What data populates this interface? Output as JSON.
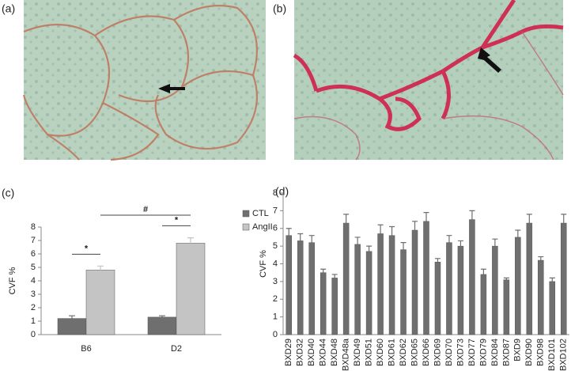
{
  "images": [
    {
      "label": "(a)"
    },
    {
      "label": "(b)"
    }
  ],
  "chart_data": [
    {
      "type": "bar",
      "panel_label": "(c)",
      "y_label": "CVF %",
      "categories": [
        "B6",
        "D2"
      ],
      "series": [
        {
          "name": "CTL",
          "color": "#6f6f6f",
          "values": [
            1.2,
            1.3
          ],
          "errors": [
            0.2,
            0.1
          ]
        },
        {
          "name": "AngII",
          "color": "#c4c4c4",
          "values": [
            4.8,
            6.8
          ],
          "errors": [
            0.3,
            0.4
          ]
        }
      ],
      "ylim": [
        0,
        8
      ],
      "yticks": [
        0,
        1,
        2,
        3,
        4,
        5,
        6,
        7,
        8
      ],
      "annotations": [
        {
          "text": "*"
        },
        {
          "text": "*"
        },
        {
          "text": "#"
        }
      ],
      "legend": "upper right"
    },
    {
      "type": "bar",
      "panel_label": "(d)",
      "y_label": "CVF %",
      "categories": [
        "BXD29",
        "BXD32",
        "BXD40",
        "BXD44",
        "BXD48",
        "BXD48a",
        "BXD49",
        "BXD51",
        "BXD60",
        "BXD61",
        "BXD62",
        "BXD65",
        "BXD66",
        "BXD69",
        "BXD70",
        "BXD73",
        "BXD77",
        "BXD79",
        "BXD84",
        "BXD87",
        "BXD9",
        "BXD90",
        "BXD98",
        "BXD101",
        "BXD102"
      ],
      "series": [
        {
          "color": "#6f6f6f",
          "values": [
            5.6,
            5.3,
            5.2,
            3.5,
            3.2,
            6.3,
            5.1,
            4.7,
            5.7,
            5.6,
            4.8,
            5.9,
            6.4,
            4.1,
            5.2,
            5.0,
            6.5,
            3.4,
            5.0,
            3.1,
            5.5,
            6.3,
            4.2,
            3.0,
            6.3
          ],
          "errors": [
            0.4,
            0.4,
            0.4,
            0.2,
            0.2,
            0.5,
            0.4,
            0.3,
            0.5,
            0.5,
            0.4,
            0.5,
            0.5,
            0.2,
            0.4,
            0.3,
            0.5,
            0.3,
            0.4,
            0.1,
            0.4,
            0.5,
            0.2,
            0.2,
            0.5
          ]
        }
      ],
      "ylim": [
        0,
        8
      ],
      "yticks": [
        0,
        1,
        2,
        3,
        4,
        5,
        6,
        7,
        8
      ]
    }
  ]
}
